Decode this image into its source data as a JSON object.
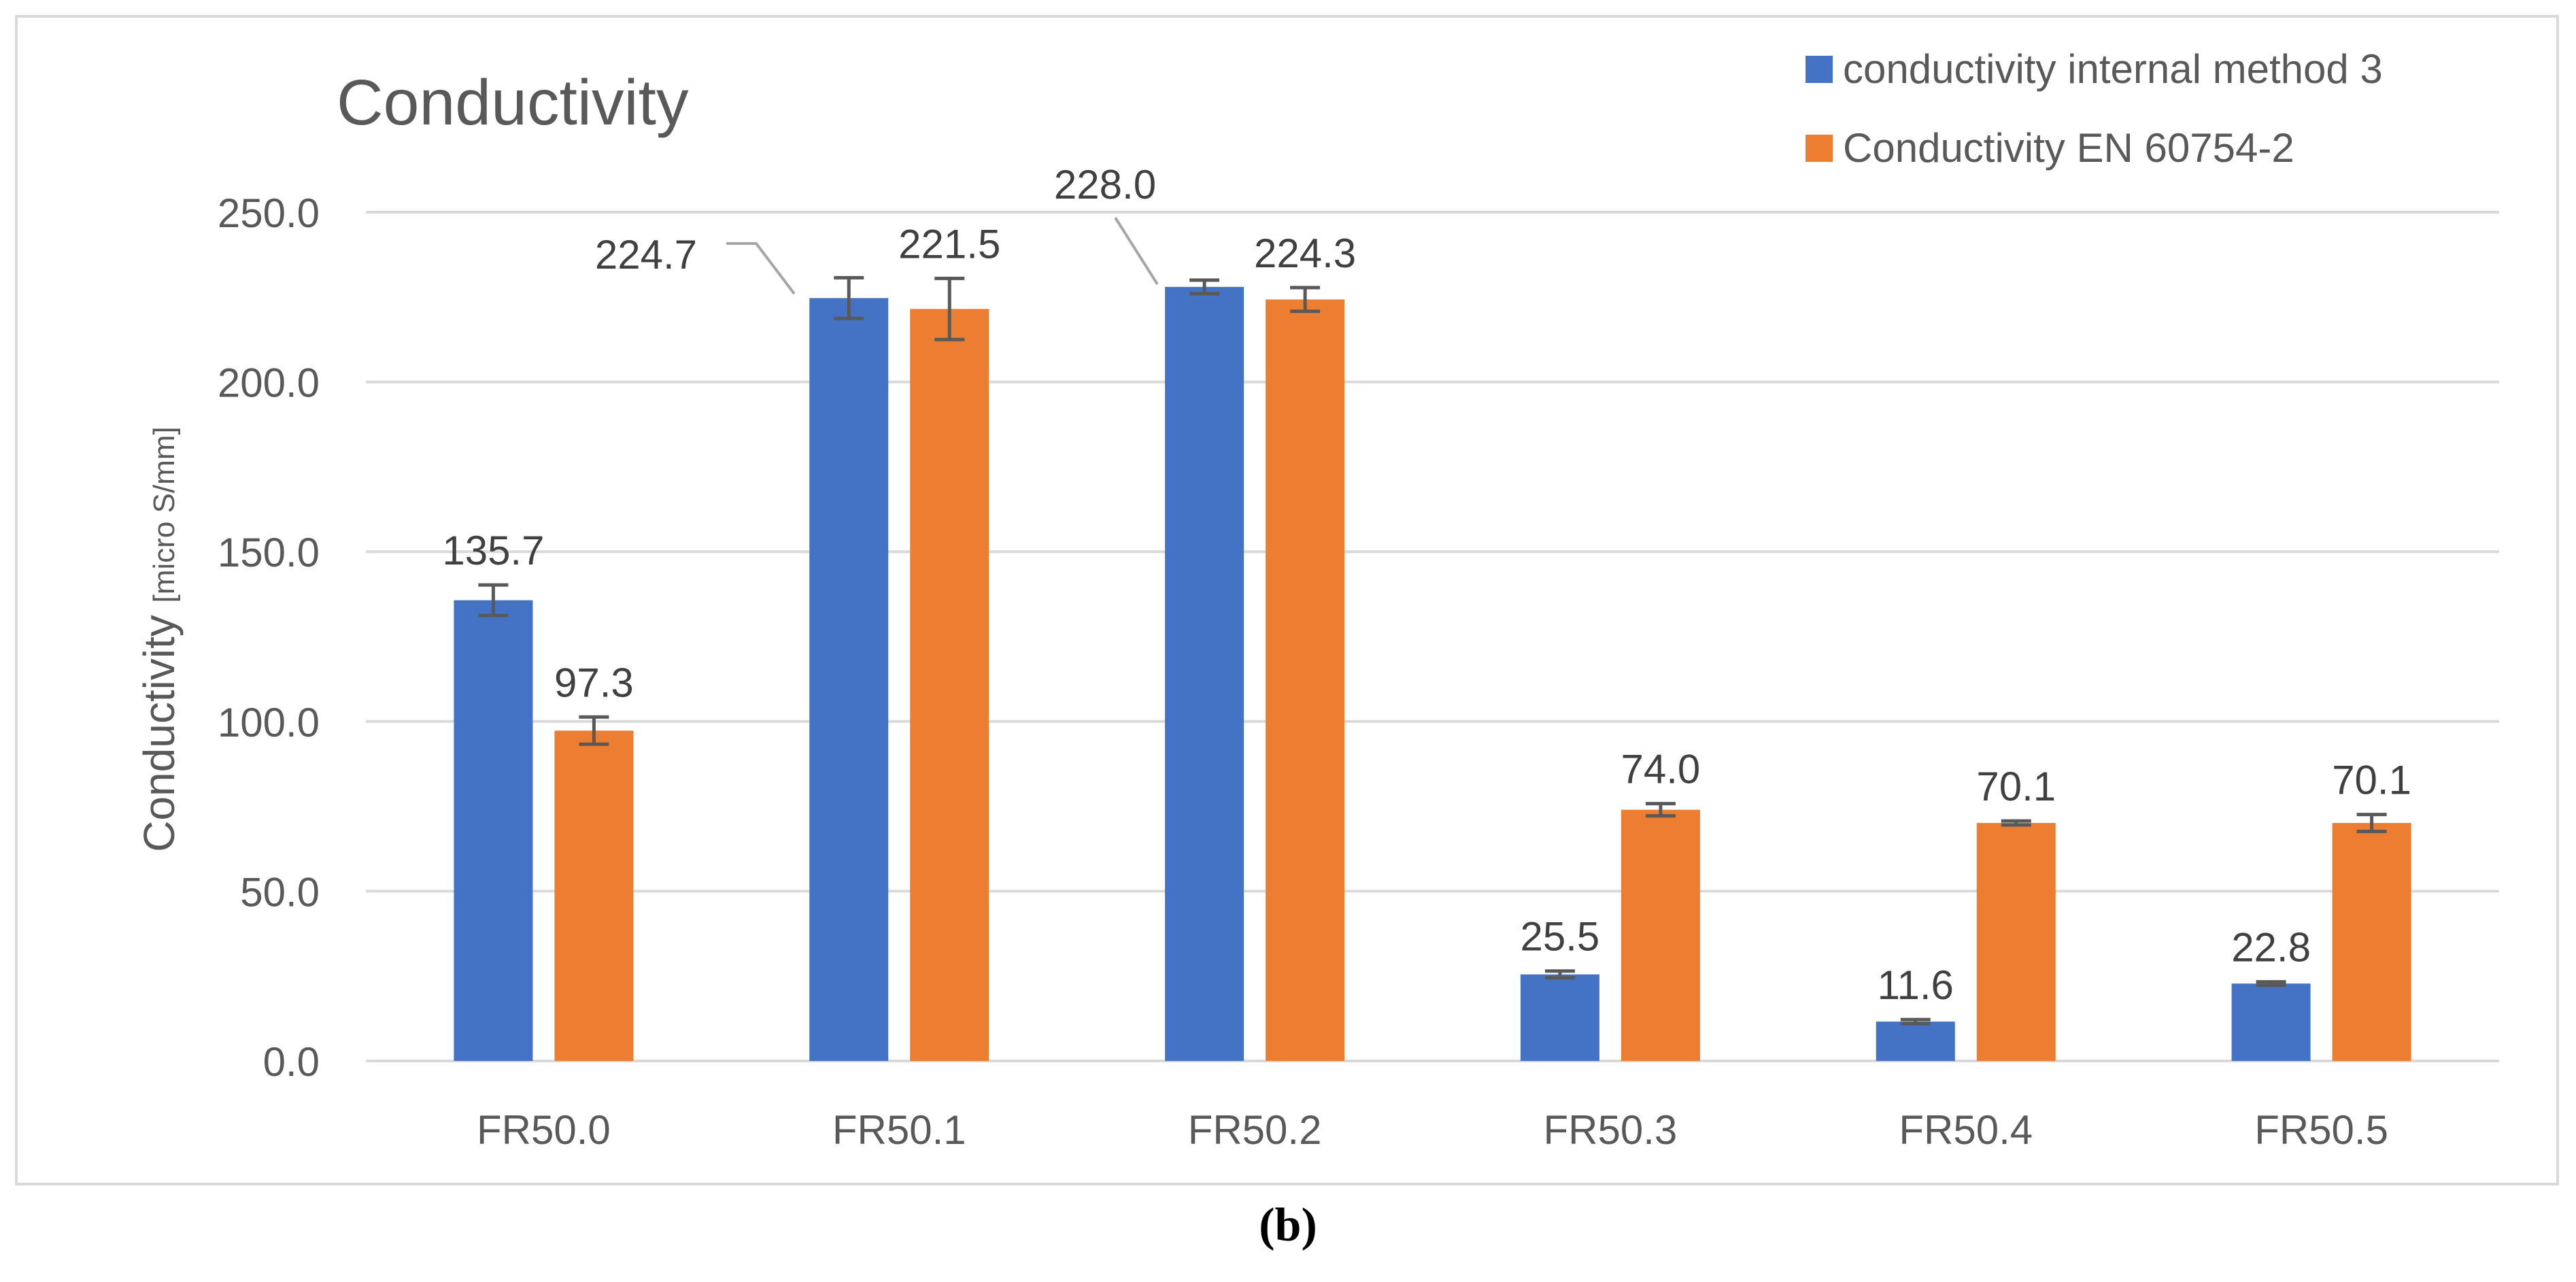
{
  "chart_data": {
    "type": "bar",
    "title": "Conductivity",
    "xlabel": "",
    "ylabel_main": "Conductivity ",
    "ylabel_unit": "[micro S/mm]",
    "ylim": [
      0,
      250
    ],
    "yticks": [
      0,
      50,
      100,
      150,
      200,
      250
    ],
    "ytick_labels": [
      "0.0",
      "50.0",
      "100.0",
      "150.0",
      "200.0",
      "250.0"
    ],
    "grid": true,
    "legend_position": "top-right",
    "categories": [
      "FR50.0",
      "FR50.1",
      "FR50.2",
      "FR50.3",
      "FR50.4",
      "FR50.5"
    ],
    "series": [
      {
        "name": "conductivity internal method 3",
        "color": "#4472c4",
        "values": [
          135.7,
          224.7,
          228.0,
          25.5,
          11.6,
          22.8
        ],
        "labels": [
          "135.7",
          "224.7",
          "228.0",
          "25.5",
          "11.6",
          "22.8"
        ],
        "errors": [
          4.5,
          6.0,
          2.0,
          1.0,
          0.6,
          0.5
        ]
      },
      {
        "name": "Conductivity EN 60754-2",
        "color": "#ed7d31",
        "values": [
          97.3,
          221.5,
          224.3,
          74.0,
          70.1,
          70.1
        ],
        "labels": [
          "97.3",
          "221.5",
          "224.3",
          "74.0",
          "70.1",
          "70.1"
        ],
        "errors": [
          4.0,
          9.0,
          3.5,
          1.8,
          0.6,
          2.5
        ]
      }
    ]
  },
  "caption": "(b)"
}
